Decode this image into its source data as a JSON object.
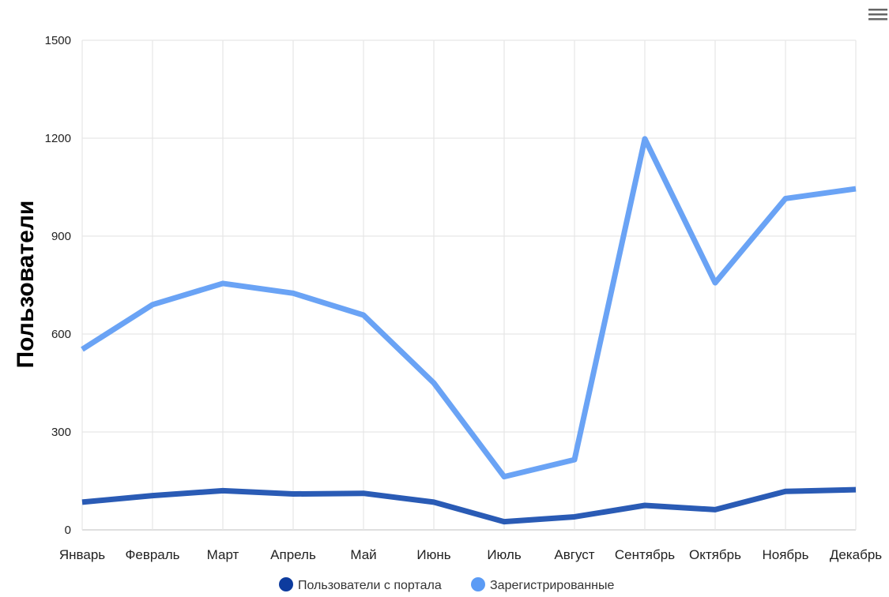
{
  "chart_data": {
    "type": "line",
    "title": "",
    "xlabel": "",
    "ylabel": "Пользователи",
    "categories": [
      "Январь",
      "Февраль",
      "Март",
      "Апрель",
      "Май",
      "Июнь",
      "Июль",
      "Август",
      "Сентябрь",
      "Октябрь",
      "Ноябрь",
      "Декабрь"
    ],
    "ylim": [
      0,
      1500
    ],
    "yticks": [
      "0",
      "300",
      "600",
      "900",
      "1200",
      "1500"
    ],
    "grid": true,
    "legend_position": "bottom-center",
    "series": [
      {
        "name": "Пользователи с портала",
        "color": "#2a5bb5",
        "values": [
          85,
          105,
          120,
          110,
          112,
          85,
          25,
          40,
          75,
          62,
          118,
          123
        ]
      },
      {
        "name": "Зарегистрированные",
        "color": "#6aa3f5",
        "values": [
          553,
          690,
          755,
          725,
          658,
          450,
          163,
          215,
          1198,
          757,
          1015,
          1045
        ]
      }
    ],
    "legend_marker_colors": [
      "#0d3b9e",
      "#5b9bf5"
    ]
  },
  "toolbar": {
    "menu_icon": "hamburger-menu-icon"
  }
}
